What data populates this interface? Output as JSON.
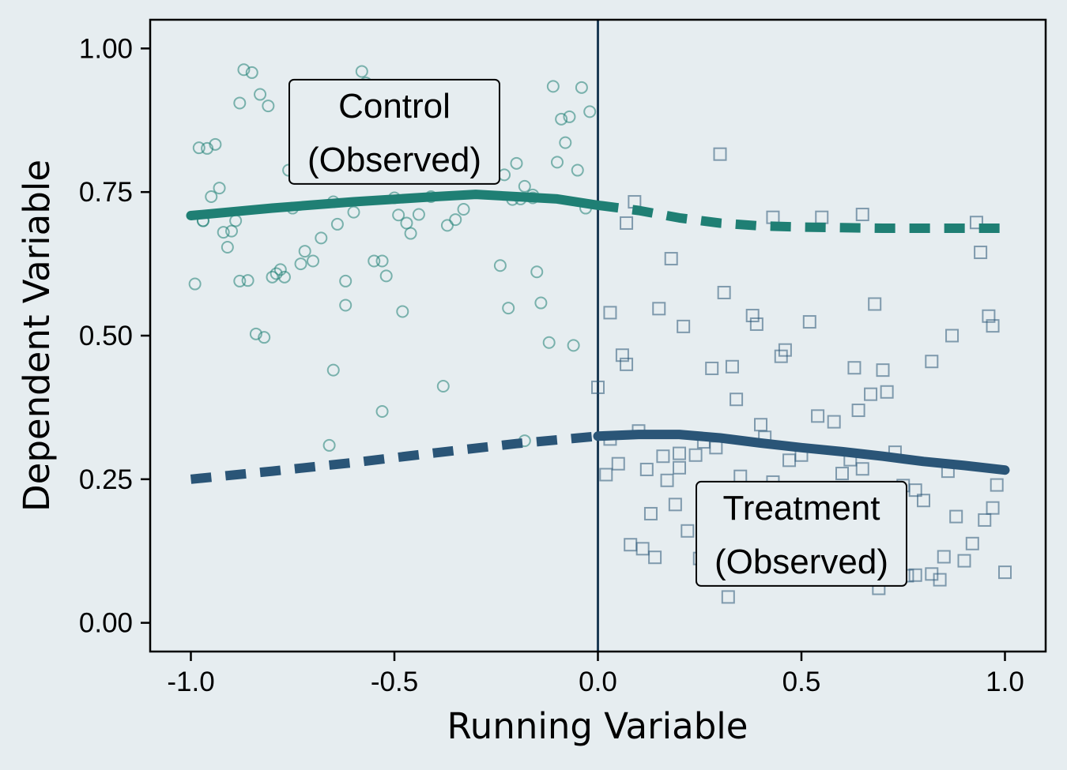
{
  "chart_data": {
    "type": "scatter",
    "xlabel": "Running Variable",
    "ylabel": "Dependent Variable",
    "xlim": [
      -1.1,
      1.1
    ],
    "ylim": [
      -0.05,
      1.05
    ],
    "x_ticks": [
      -1.0,
      -0.5,
      0.0,
      0.5,
      1.0
    ],
    "x_tick_labels": [
      "-1.0",
      "-0.5",
      "0.0",
      "0.5",
      "1.0"
    ],
    "y_ticks": [
      0.0,
      0.25,
      0.5,
      0.75,
      1.0
    ],
    "y_tick_labels": [
      "0.00",
      "0.25",
      "0.50",
      "0.75",
      "1.00"
    ],
    "cutoff": 0.0,
    "grid": false,
    "colors": {
      "control": "#1f7f74",
      "treatment": "#2a5577",
      "cutoff_line": "#1d3b55",
      "background": "#e6edf0"
    },
    "annotations": [
      {
        "id": "control",
        "lines": [
          "Control",
          "(Observed)"
        ],
        "x": -0.5,
        "y": 0.855
      },
      {
        "id": "treatment",
        "lines": [
          "Treatment",
          "(Observed)"
        ],
        "x": 0.5,
        "y": 0.155
      }
    ],
    "series": [
      {
        "id": "control-points",
        "kind": "points",
        "marker": "circle",
        "color": "#1f7f74",
        "x": [
          -0.98,
          -0.96,
          -0.94,
          -0.93,
          -0.97,
          -0.95,
          -0.92,
          -0.91,
          -0.9,
          -0.89,
          -0.88,
          -0.86,
          -0.87,
          -0.85,
          -0.84,
          -0.82,
          -0.8,
          -0.79,
          -0.78,
          -0.77,
          -0.75,
          -0.73,
          -0.72,
          -0.7,
          -0.68,
          -0.66,
          -0.65,
          -0.64,
          -0.62,
          -0.6,
          -0.58,
          -0.57,
          -0.55,
          -0.53,
          -0.52,
          -0.5,
          -0.48,
          -0.47,
          -0.46,
          -0.44,
          -0.41,
          -0.37,
          -0.35,
          -0.33,
          -0.31,
          -0.29,
          -0.27,
          -0.24,
          -0.22,
          -0.2,
          -0.19,
          -0.18,
          -0.16,
          -0.15,
          -0.14,
          -0.12,
          -0.11,
          -0.1,
          -0.09,
          -0.08,
          -0.07,
          -0.06,
          -0.05,
          -0.04,
          -0.03,
          -0.02,
          -0.55,
          -0.83,
          -0.88,
          -0.76,
          -0.65,
          -0.38,
          -0.53,
          -0.18,
          -0.16,
          -0.21,
          -0.49,
          -0.23,
          -0.62,
          -0.81,
          -0.99,
          -0.97
        ],
        "y": [
          0.827,
          0.826,
          0.833,
          0.757,
          0.7,
          0.742,
          0.68,
          0.654,
          0.682,
          0.7,
          0.595,
          0.596,
          0.963,
          0.958,
          0.503,
          0.497,
          0.602,
          0.608,
          0.615,
          0.602,
          0.722,
          0.625,
          0.647,
          0.63,
          0.67,
          0.309,
          0.733,
          0.694,
          0.553,
          0.715,
          0.96,
          0.94,
          0.63,
          0.368,
          0.604,
          0.74,
          0.542,
          0.696,
          0.678,
          0.711,
          0.742,
          0.692,
          0.702,
          0.72,
          0.784,
          0.8,
          0.865,
          0.622,
          0.548,
          0.8,
          0.738,
          0.76,
          0.745,
          0.611,
          0.557,
          0.488,
          0.934,
          0.802,
          0.877,
          0.836,
          0.881,
          0.483,
          0.788,
          0.932,
          0.722,
          0.89,
          0.78,
          0.92,
          0.905,
          0.788,
          0.44,
          0.412,
          0.63,
          0.317,
          0.74,
          0.737,
          0.71,
          0.78,
          0.595,
          0.9,
          0.59,
          0.7
        ],
        "name": ""
      },
      {
        "id": "treatment-points",
        "kind": "points",
        "marker": "square",
        "color": "#2a5577",
        "x": [
          0.3,
          0.09,
          0.07,
          0.18,
          0.43,
          0.55,
          0.65,
          0.93,
          0.94,
          0.31,
          0.15,
          0.21,
          0.03,
          0.38,
          0.39,
          0.52,
          0.68,
          0.96,
          0.97,
          0.87,
          0.46,
          0.45,
          0.07,
          0.06,
          0.28,
          0.33,
          0.63,
          0.7,
          0.0,
          0.1,
          0.12,
          0.2,
          0.24,
          0.26,
          0.29,
          0.34,
          0.4,
          0.41,
          0.43,
          0.47,
          0.5,
          0.54,
          0.58,
          0.6,
          0.62,
          0.65,
          0.67,
          0.71,
          0.73,
          0.75,
          0.78,
          0.8,
          0.82,
          0.84,
          0.86,
          0.9,
          0.92,
          0.95,
          0.98,
          1.0,
          0.02,
          0.05,
          0.08,
          0.11,
          0.14,
          0.17,
          0.19,
          0.22,
          0.32,
          0.25,
          0.35,
          0.44,
          0.64,
          0.69,
          0.78,
          0.85,
          0.88,
          0.76,
          0.82,
          0.97,
          0.16,
          0.2,
          0.13,
          0.03
        ],
        "y": [
          0.816,
          0.733,
          0.696,
          0.634,
          0.706,
          0.706,
          0.711,
          0.697,
          0.645,
          0.575,
          0.547,
          0.516,
          0.54,
          0.535,
          0.52,
          0.524,
          0.555,
          0.534,
          0.517,
          0.5,
          0.475,
          0.464,
          0.45,
          0.466,
          0.443,
          0.446,
          0.444,
          0.44,
          0.41,
          0.334,
          0.267,
          0.295,
          0.292,
          0.315,
          0.305,
          0.389,
          0.345,
          0.323,
          0.245,
          0.283,
          0.292,
          0.36,
          0.35,
          0.26,
          0.284,
          0.268,
          0.398,
          0.402,
          0.297,
          0.239,
          0.231,
          0.213,
          0.455,
          0.075,
          0.264,
          0.108,
          0.138,
          0.179,
          0.24,
          0.088,
          0.258,
          0.277,
          0.136,
          0.129,
          0.114,
          0.248,
          0.206,
          0.16,
          0.045,
          0.112,
          0.255,
          0.218,
          0.37,
          0.06,
          0.083,
          0.115,
          0.185,
          0.082,
          0.085,
          0.2,
          0.29,
          0.27,
          0.19,
          0.32
        ],
        "name": ""
      },
      {
        "id": "control-fit-observed",
        "kind": "line",
        "style": "solid",
        "color": "#1f7f74",
        "x": [
          -1.0,
          -0.8,
          -0.6,
          -0.4,
          -0.3,
          -0.2,
          -0.1,
          0.0
        ],
        "y": [
          0.709,
          0.722,
          0.733,
          0.742,
          0.746,
          0.742,
          0.738,
          0.727
        ]
      },
      {
        "id": "control-fit-counterfactual",
        "kind": "line",
        "style": "dashed",
        "color": "#1f7f74",
        "x": [
          0.0,
          0.1,
          0.2,
          0.3,
          0.4,
          0.5,
          0.6,
          0.7,
          0.8,
          0.9,
          1.0
        ],
        "y": [
          0.727,
          0.718,
          0.705,
          0.696,
          0.691,
          0.689,
          0.688,
          0.687,
          0.687,
          0.687,
          0.687
        ]
      },
      {
        "id": "treatment-fit-counterfactual",
        "kind": "line",
        "style": "dashed",
        "color": "#2a5577",
        "x": [
          -1.0,
          -0.8,
          -0.6,
          -0.4,
          -0.2,
          0.0
        ],
        "y": [
          0.25,
          0.264,
          0.279,
          0.296,
          0.312,
          0.325
        ]
      },
      {
        "id": "treatment-fit-observed",
        "kind": "line",
        "style": "solid",
        "color": "#2a5577",
        "x": [
          0.0,
          0.1,
          0.2,
          0.3,
          0.4,
          0.5,
          0.6,
          0.7,
          0.8,
          0.9,
          1.0
        ],
        "y": [
          0.325,
          0.328,
          0.328,
          0.322,
          0.313,
          0.305,
          0.298,
          0.29,
          0.281,
          0.274,
          0.266
        ]
      }
    ]
  }
}
